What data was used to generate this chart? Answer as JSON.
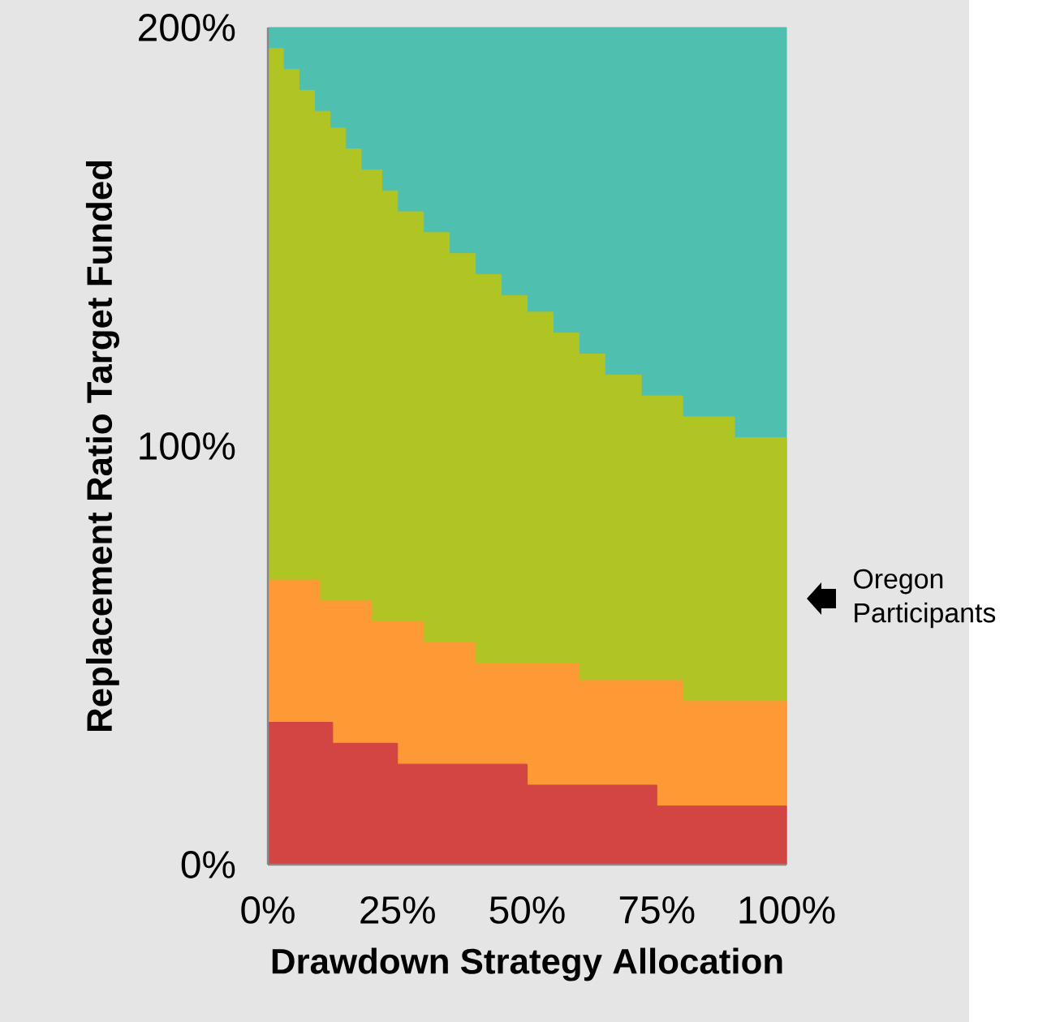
{
  "chart_data": {
    "type": "area",
    "xlabel": "Drawdown Strategy Allocation",
    "ylabel": "Replacement Ratio Target Funded",
    "xlim": [
      0,
      100
    ],
    "ylim": [
      0,
      200
    ],
    "xticks": [
      {
        "value": 0,
        "label": "0%"
      },
      {
        "value": 25,
        "label": "25%"
      },
      {
        "value": 50,
        "label": "50%"
      },
      {
        "value": 75,
        "label": "75%"
      },
      {
        "value": 100,
        "label": "100%"
      }
    ],
    "yticks": [
      {
        "value": 0,
        "label": "0%"
      },
      {
        "value": 100,
        "label": "100%"
      },
      {
        "value": 200,
        "label": "200%"
      }
    ],
    "series": [
      {
        "color": "#4fbfb0",
        "x": [
          0,
          100
        ],
        "values": [
          200,
          200
        ]
      },
      {
        "color": "#b0c424",
        "x": [
          0,
          3,
          3,
          6,
          6,
          9,
          9,
          12,
          12,
          15,
          15,
          18,
          18,
          22,
          22,
          25,
          25,
          30,
          30,
          35,
          35,
          40,
          40,
          45,
          45,
          50,
          50,
          55,
          55,
          60,
          60,
          65,
          65,
          72,
          72,
          80,
          80,
          90,
          90,
          100
        ],
        "values": [
          195,
          195,
          190,
          190,
          185,
          185,
          180,
          180,
          176,
          176,
          171,
          171,
          166,
          166,
          161,
          161,
          156,
          156,
          151,
          151,
          146,
          146,
          141,
          141,
          136,
          136,
          132,
          132,
          127,
          127,
          122,
          122,
          117,
          117,
          112,
          112,
          107,
          107,
          102,
          102
        ]
      },
      {
        "color": "#fe9a35",
        "x": [
          0,
          10,
          10,
          20,
          20,
          30,
          30,
          40,
          40,
          60,
          60,
          80,
          80,
          100
        ],
        "values": [
          68,
          68,
          63,
          63,
          58,
          58,
          53,
          53,
          48,
          48,
          44,
          44,
          39,
          39
        ]
      },
      {
        "color": "#d24542",
        "x": [
          0,
          12.5,
          12.5,
          25,
          25,
          50,
          50,
          75,
          75,
          100
        ],
        "values": [
          34,
          34,
          29,
          29,
          24,
          24,
          19,
          19,
          14,
          14
        ]
      }
    ],
    "annotations": [
      "Oregon Participants"
    ]
  }
}
